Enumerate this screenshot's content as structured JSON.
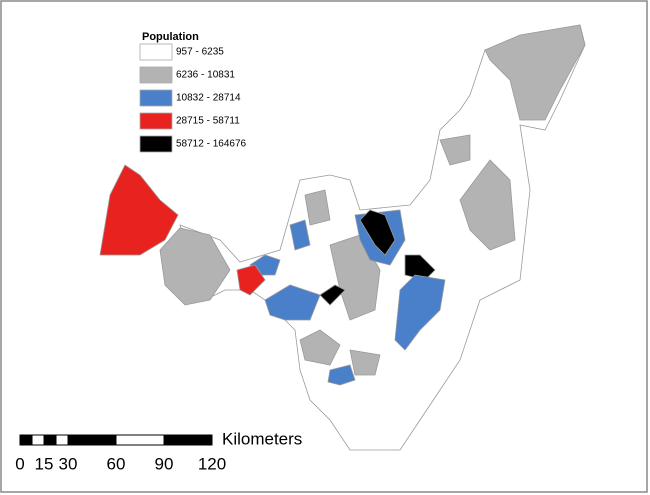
{
  "legend": {
    "title": "Population",
    "entries": [
      {
        "label": "957 - 6235",
        "color": "#ffffff"
      },
      {
        "label": "6236 - 10831",
        "color": "#b3b3b3"
      },
      {
        "label": "10832 - 28714",
        "color": "#4a7fc9"
      },
      {
        "label": "28715 - 58711",
        "color": "#e8231f"
      },
      {
        "label": "58712 - 164676",
        "color": "#000000"
      }
    ]
  },
  "scale_bar": {
    "unit": "Kilometers",
    "ticks": [
      0,
      15,
      30,
      60,
      90,
      120
    ]
  }
}
